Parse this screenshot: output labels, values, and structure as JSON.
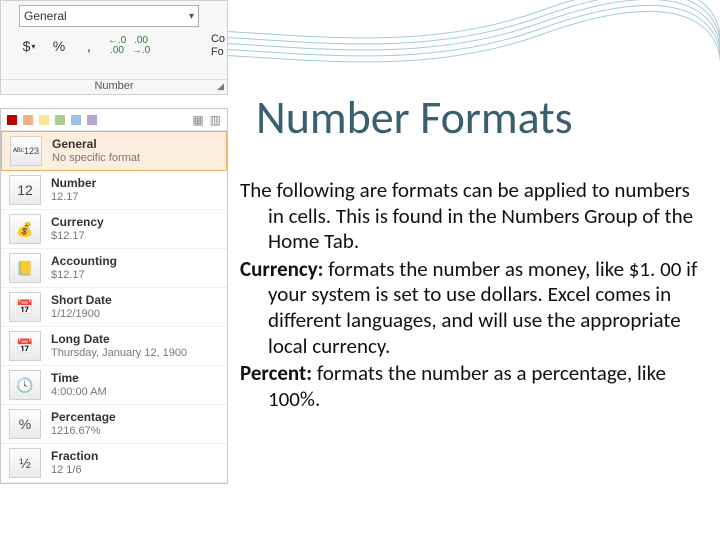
{
  "slide": {
    "title": "Number Formats",
    "title_color": "#3a5f6f",
    "title_fontsize": 46,
    "body_fontsize": 21,
    "body_color": "#111111",
    "paragraphs": {
      "intro_lead": "The following are formats can be applied to numbers in cells.  This is found in the Numbers Group of the Home Tab.",
      "currency_label": "Currency:",
      "currency_text": " formats the number as money, like $1. 00 if your system is set to use dollars. Excel comes in different languages, and will use the appropriate local currency.",
      "percent_label": "Percent:",
      "percent_text": " formats the number as a percentage, like 100%."
    }
  },
  "ribbon": {
    "combo_value": "General",
    "group_label": "Number",
    "buttons": {
      "currency": "$",
      "percent": "%",
      "comma": ",",
      "inc_dec": "←.0\n.00",
      "dec_dec": ".00\n→.0"
    },
    "cond_stub_l1": "Co",
    "cond_stub_l2": "Fo",
    "colors": {
      "background": "#f7f7f7",
      "border": "#d0d0d0",
      "combo_border": "#b0b0b0"
    }
  },
  "dropdown": {
    "head_swatches": [
      "#c00000",
      "#f4b084",
      "#ffe699",
      "#a9d08e",
      "#9bc2e6",
      "#b4a7d6"
    ],
    "items": [
      {
        "icon": "ᴬᴮᶜ123",
        "name": "General",
        "sample": "No specific format",
        "selected": true
      },
      {
        "icon": "12",
        "name": "Number",
        "sample": "12.17"
      },
      {
        "icon": "💰",
        "name": "Currency",
        "sample": "$12.17"
      },
      {
        "icon": "📒",
        "name": "Accounting",
        "sample": "$12.17"
      },
      {
        "icon": "📅",
        "name": "Short Date",
        "sample": "1/12/1900"
      },
      {
        "icon": "📅",
        "name": "Long Date",
        "sample": "Thursday, January 12, 1900"
      },
      {
        "icon": "🕓",
        "name": "Time",
        "sample": "4:00:00 AM"
      },
      {
        "icon": "%",
        "name": "Percentage",
        "sample": "1216.67%"
      },
      {
        "icon": "½",
        "name": "Fraction",
        "sample": "12 1/6"
      }
    ],
    "colors": {
      "panel_border": "#c8c8c8",
      "selected_bg": "#fdeee0",
      "selected_border": "#f0b060"
    }
  },
  "decoration": {
    "wave_stroke": "#55a0b5",
    "wave_opacity": 0.55
  }
}
